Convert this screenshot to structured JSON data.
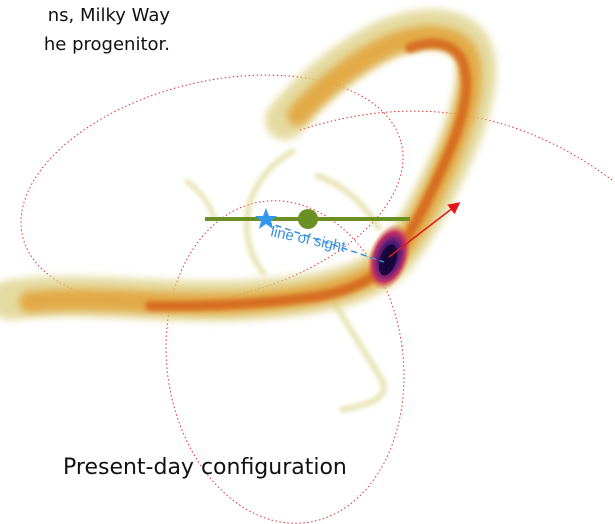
{
  "caption_top_lines": [
    "ns, Milky Way",
    "he progenitor."
  ],
  "bottom_caption": "Present-day configuration",
  "los_label": "line of sight",
  "colors": {
    "stream_light": "#d8cf7e",
    "stream_mid": "#e0a030",
    "stream_core": "#d2691e",
    "dense_core": "#1a0a55",
    "orbit_line": "#e03030",
    "green_line": "#6b8f23",
    "green_dot": "#6b8f23",
    "observer_star": "#3399ee",
    "los_text": "#3a8fdd",
    "velocity_arrow": "#e01818"
  },
  "icons": {
    "observer": "star-icon",
    "center": "milky-way-center-dot",
    "velocity": "arrow-icon"
  }
}
